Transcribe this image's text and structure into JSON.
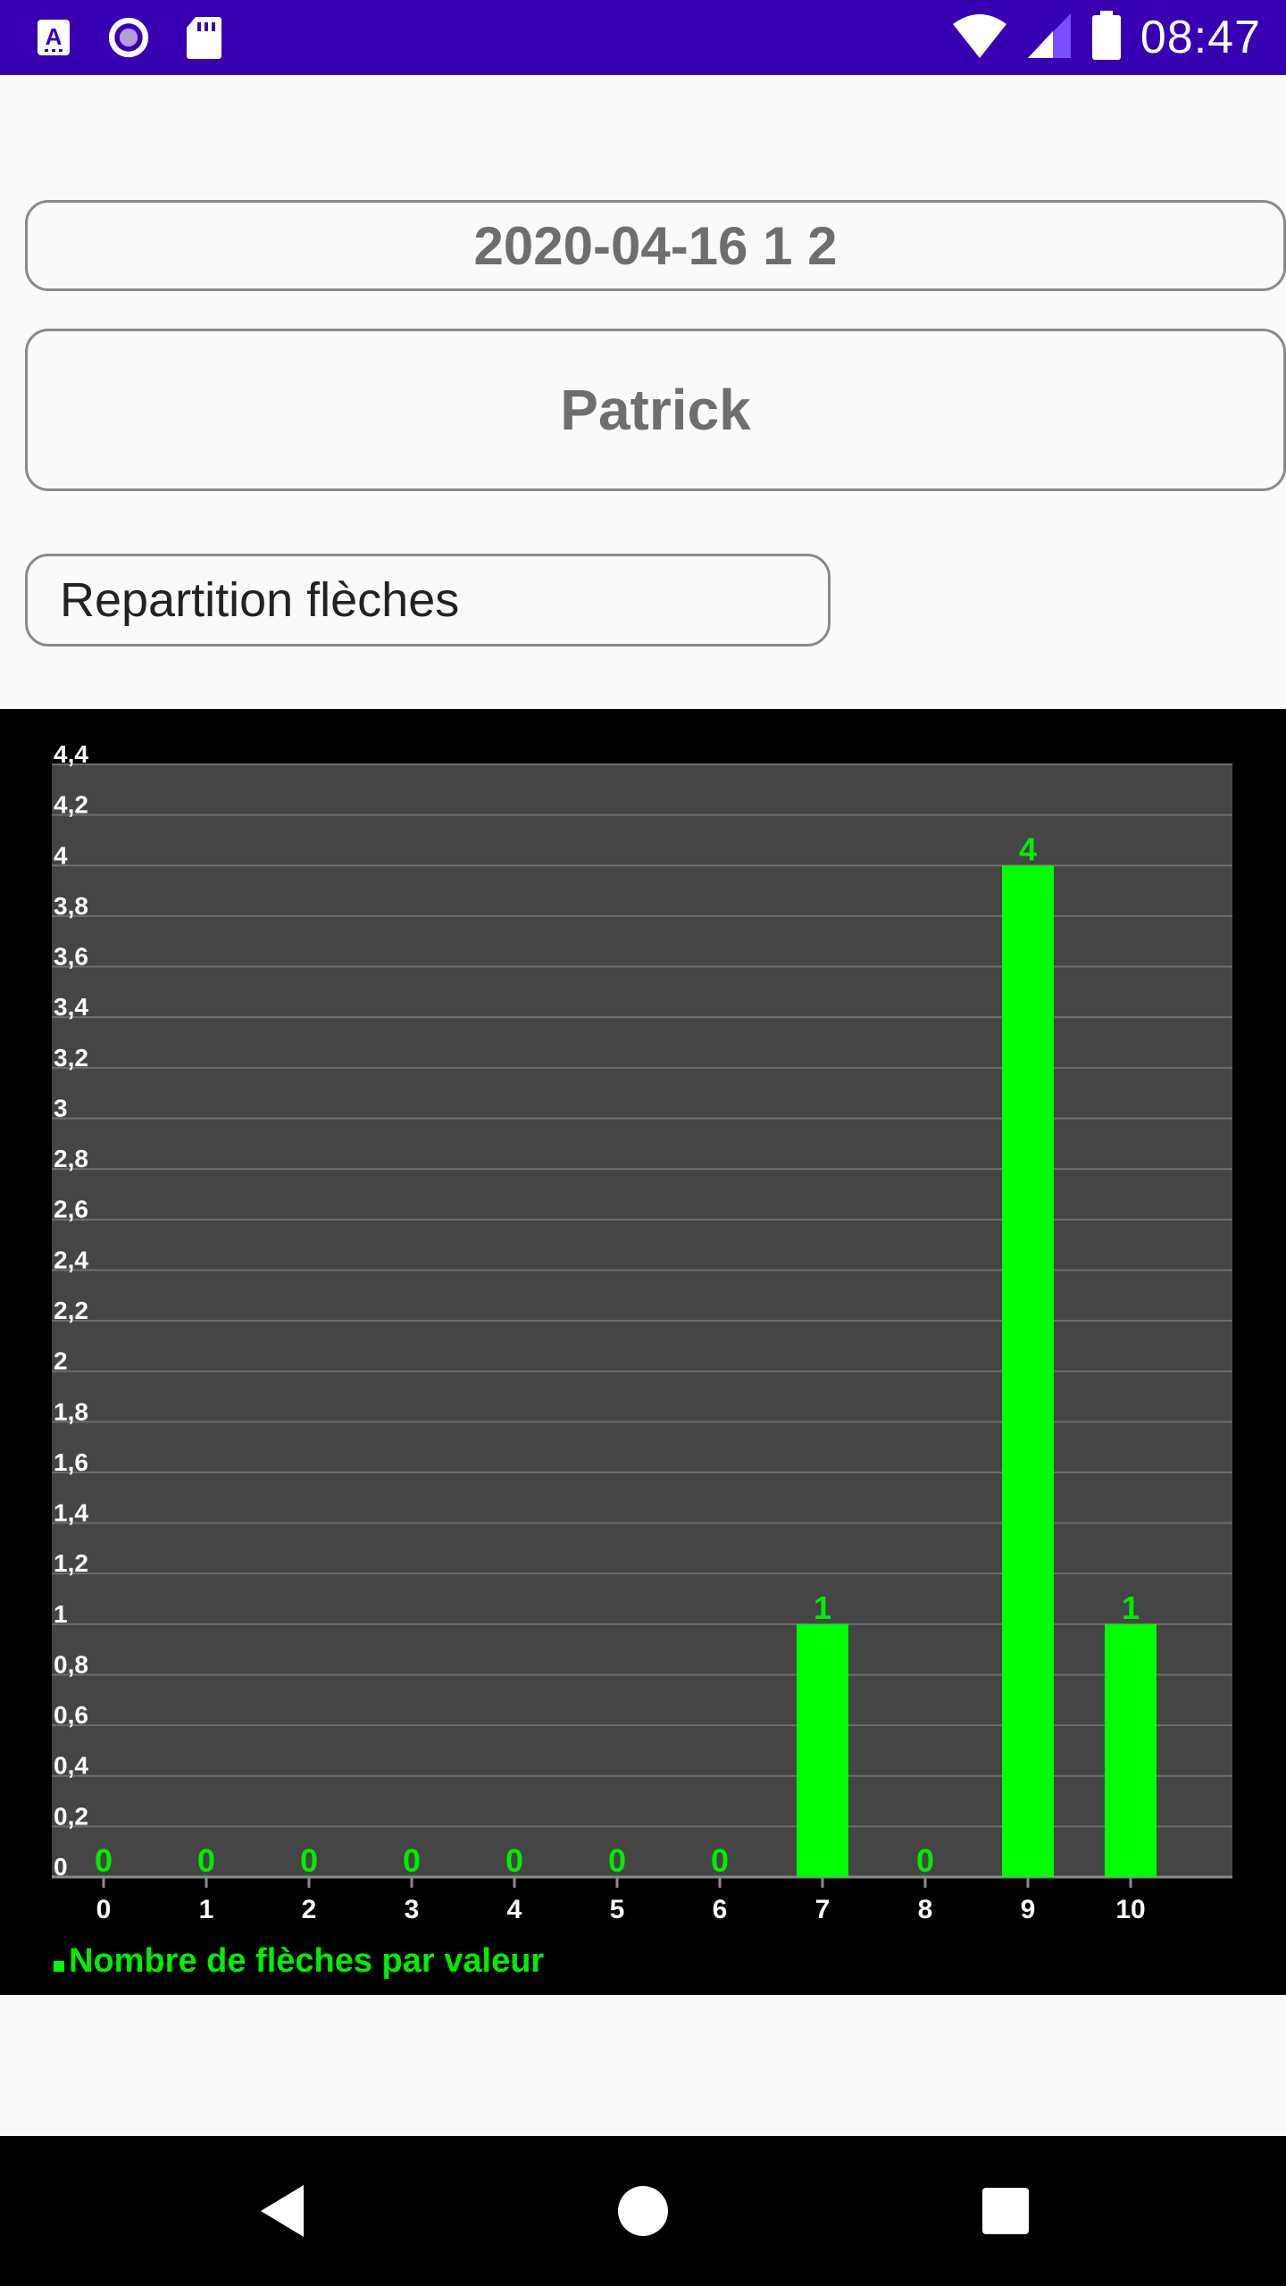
{
  "status_bar": {
    "time": "08:47",
    "icons": [
      "a-notification-icon",
      "record-icon",
      "sd-card-icon",
      "wifi-icon",
      "signal-icon",
      "battery-icon"
    ]
  },
  "form": {
    "date_field": "2020-04-16 1 2",
    "name_field": "Patrick",
    "chart_select": "Repartition flèches"
  },
  "colors": {
    "status_bar": "#3700b3",
    "plot_background": "#454545",
    "bar": "#00ff00",
    "label": "#00ee00",
    "chart_background": "#000000"
  },
  "chart_data": {
    "type": "bar",
    "categories": [
      "0",
      "1",
      "2",
      "3",
      "4",
      "5",
      "6",
      "7",
      "8",
      "9",
      "10"
    ],
    "series": [
      {
        "name": "Nombre de flèches par valeur",
        "values": [
          0,
          0,
          0,
          0,
          0,
          0,
          0,
          1,
          0,
          4,
          1
        ]
      }
    ],
    "ylim": [
      0,
      4.4
    ],
    "yticks": [
      "0",
      "0,2",
      "0,4",
      "0,6",
      "0,8",
      "1",
      "1,2",
      "1,4",
      "1,6",
      "1,8",
      "2",
      "2,2",
      "2,4",
      "2,6",
      "2,8",
      "3",
      "3,2",
      "3,4",
      "3,6",
      "3,8",
      "4",
      "4,2",
      "4,4"
    ],
    "grid": true,
    "legend_position": "bottom-left",
    "title": "",
    "xlabel": "",
    "ylabel": ""
  },
  "nav_bar": {
    "buttons": [
      "back-icon",
      "home-icon",
      "recents-icon"
    ]
  }
}
